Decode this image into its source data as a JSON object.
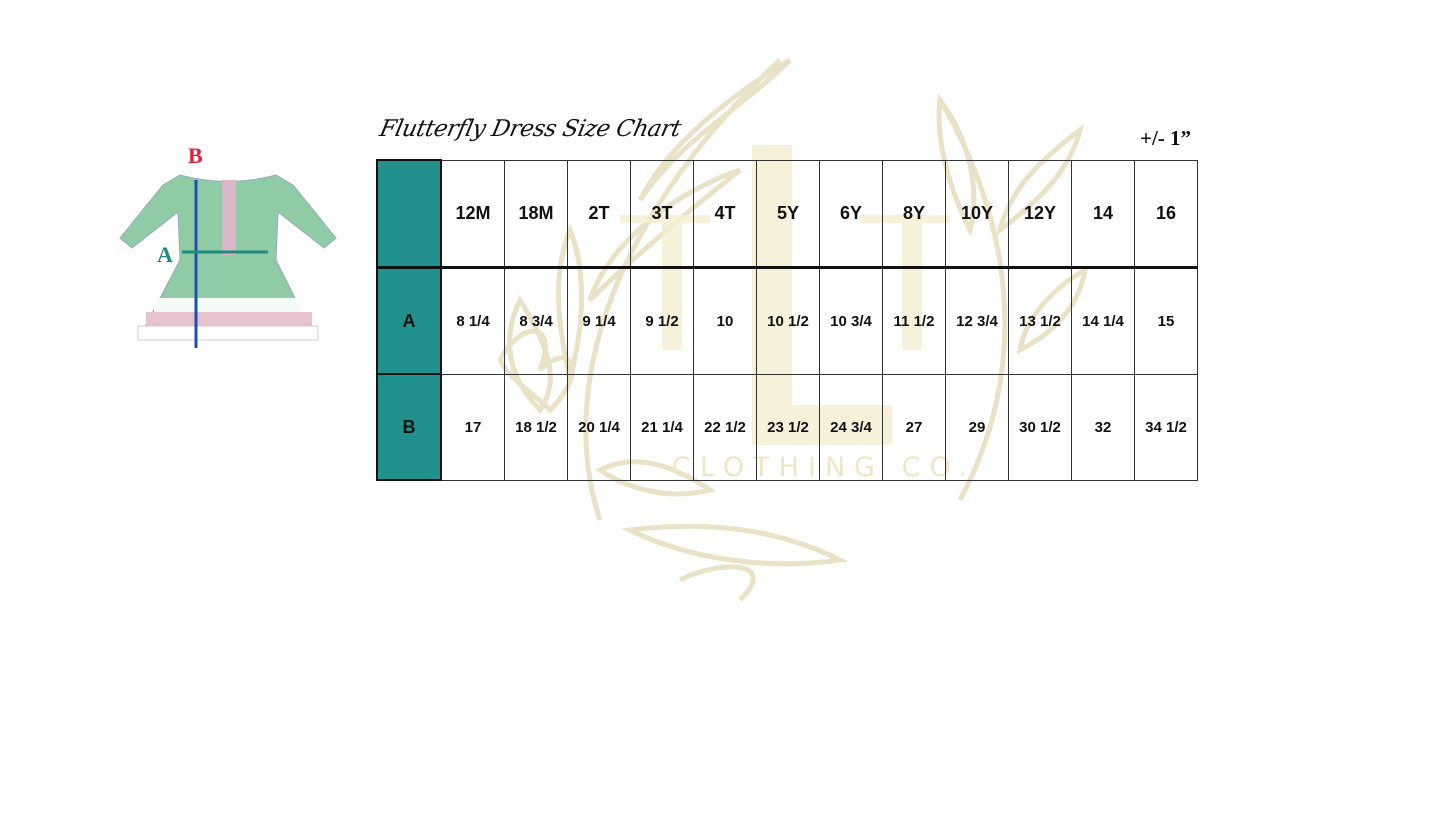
{
  "title": "Flutterfly Dress Size Chart",
  "tolerance": "+/- 1”",
  "watermark": {
    "logo_letters": "LL",
    "tagline": "CLOTHING CO."
  },
  "diagram": {
    "label_a": "A",
    "label_b": "B",
    "color_a": "#1f8a80",
    "color_b": "#e0203f"
  },
  "table": {
    "accent": "#22918d",
    "sizes": [
      "12M",
      "18M",
      "2T",
      "3T",
      "4T",
      "5Y",
      "6Y",
      "8Y",
      "10Y",
      "12Y",
      "14",
      "16"
    ],
    "rows": [
      {
        "label": "A",
        "values": [
          "8 1/4",
          "8 3/4",
          "9 1/4",
          "9 1/2",
          "10",
          "10 1/2",
          "10 3/4",
          "11 1/2",
          "12 3/4",
          "13 1/2",
          "14 1/4",
          "15"
        ]
      },
      {
        "label": "B",
        "values": [
          "17",
          "18 1/2",
          "20 1/4",
          "21  1/4",
          "22 1/2",
          "23 1/2",
          "24 3/4",
          "27",
          "29",
          "30 1/2",
          "32",
          "34 1/2"
        ]
      }
    ]
  }
}
